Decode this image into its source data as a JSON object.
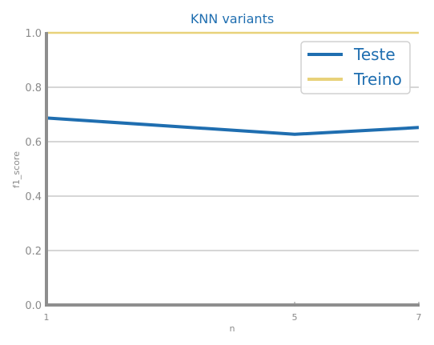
{
  "chart_data": {
    "type": "line",
    "title": "KNN variants",
    "xlabel": "n",
    "ylabel": "f1_score",
    "x": [
      1,
      5,
      7
    ],
    "xticks": [
      1,
      5,
      7
    ],
    "xlim": [
      1,
      7
    ],
    "ylim": [
      0.0,
      1.0
    ],
    "yticks": [
      "0.0",
      "0.2",
      "0.4",
      "0.6",
      "0.8",
      "1.0"
    ],
    "grid": "horizontal",
    "legend_position": "top-right",
    "series": [
      {
        "name": "Teste",
        "values": [
          0.687,
          0.627,
          0.652
        ],
        "color": "#1f6eb0"
      },
      {
        "name": "Treino",
        "values": [
          1.0,
          1.0,
          1.0
        ],
        "color": "#e8d27a"
      }
    ],
    "colors": {
      "text": "#1f6eb0",
      "tick": "#8a8a8a",
      "axis": "#8e8e8e",
      "grid": "#c8c8c8"
    }
  }
}
